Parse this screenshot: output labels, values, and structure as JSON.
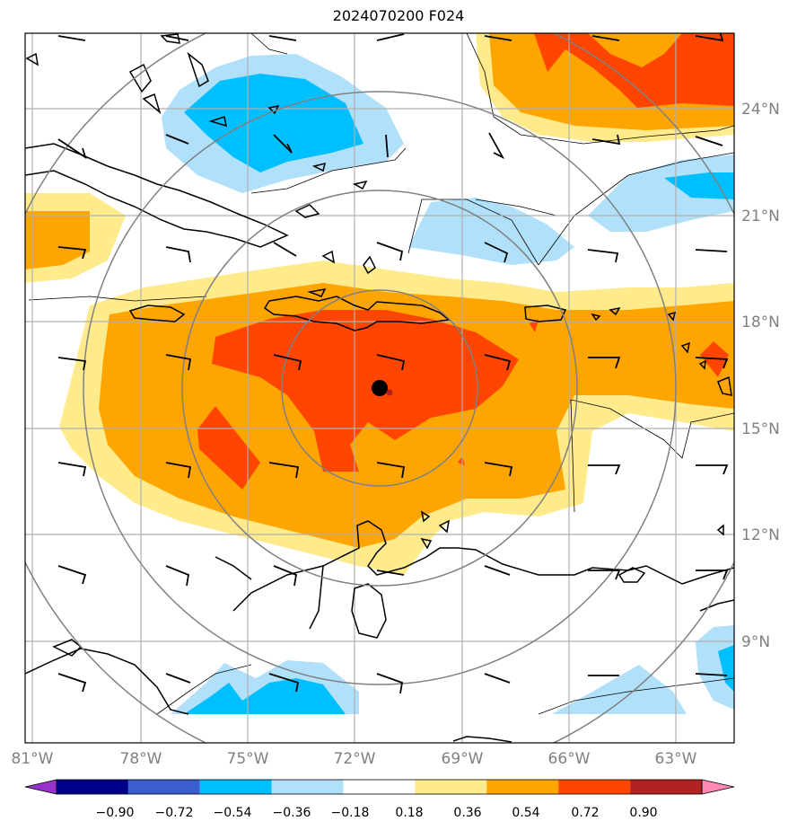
{
  "title": "2024070200 F024",
  "lat_labels": [
    "24°N",
    "21°N",
    "18°N",
    "15°N",
    "12°N",
    "9°N"
  ],
  "lon_labels": [
    "81°W",
    "78°W",
    "75°W",
    "72°W",
    "69°W",
    "66°W",
    "63°W"
  ],
  "colorbar": {
    "ticks": [
      "−0.90",
      "−0.72",
      "−0.54",
      "−0.36",
      "−0.18",
      "0.18",
      "0.36",
      "0.54",
      "0.72",
      "0.90"
    ],
    "colors": [
      "#9932cc",
      "#00008b",
      "#3a5fcd",
      "#00bfff",
      "#b0e0fa",
      "#ffffff",
      "#ffeb8c",
      "#ffa500",
      "#ff4500",
      "#b22222",
      "#ff88b4"
    ]
  },
  "center_marker": {
    "lon": -71.2,
    "lat": 16.1
  }
}
